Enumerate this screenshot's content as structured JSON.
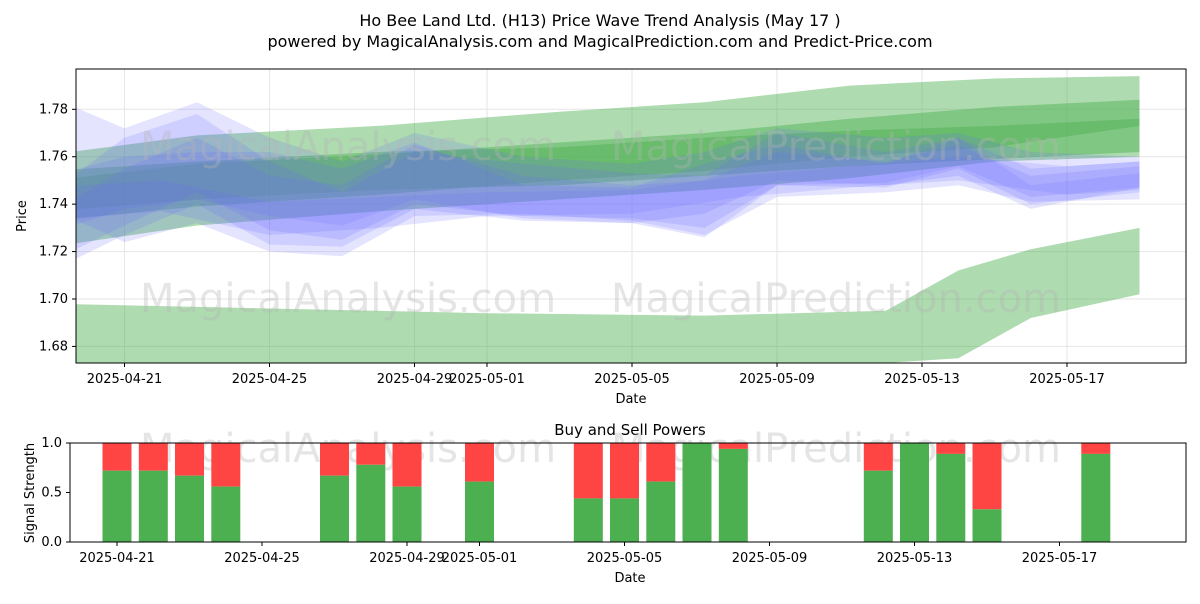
{
  "title": "Ho Bee Land Ltd. (H13) Price Wave Trend Analysis (May 17 )",
  "subtitle": "powered by MagicalAnalysis.com and MagicalPrediction.com and Predict-Price.com",
  "watermarks": [
    "MagicalAnalysis.com",
    "MagicalPrediction.com"
  ],
  "colors": {
    "green_band": "#4caf50",
    "blue_band": "#6a6aff",
    "buy": "#4caf50",
    "sell": "#ff4444",
    "grid": "#e6e6e6"
  },
  "chart_data": [
    {
      "type": "area",
      "title": "",
      "xlabel": "Date",
      "ylabel": "Price",
      "x_range": [
        "2025-04-19",
        "2025-05-20"
      ],
      "ylim": [
        1.673,
        1.797
      ],
      "y_ticks": [
        "1.68",
        "1.70",
        "1.72",
        "1.74",
        "1.76",
        "1.78"
      ],
      "x_ticks": [
        "2025-04-21",
        "2025-04-25",
        "2025-04-29",
        "2025-05-01",
        "2025-05-05",
        "2025-05-09",
        "2025-05-13",
        "2025-05-17"
      ],
      "grid": true,
      "green_bands": [
        {
          "x": [
            "2025-04-19",
            "2025-04-23",
            "2025-04-28",
            "2025-05-03",
            "2025-05-07",
            "2025-05-11",
            "2025-05-15",
            "2025-05-19"
          ],
          "upper": [
            1.761,
            1.769,
            1.773,
            1.779,
            1.783,
            1.79,
            1.793,
            1.794
          ],
          "lower": [
            1.722,
            1.731,
            1.737,
            1.742,
            1.746,
            1.751,
            1.758,
            1.76
          ]
        },
        {
          "x": [
            "2025-04-19",
            "2025-04-23",
            "2025-04-28",
            "2025-05-03",
            "2025-05-07",
            "2025-05-11",
            "2025-05-15",
            "2025-05-19"
          ],
          "upper": [
            1.75,
            1.757,
            1.761,
            1.766,
            1.77,
            1.776,
            1.781,
            1.784
          ],
          "lower": [
            1.733,
            1.739,
            1.744,
            1.75,
            1.754,
            1.76,
            1.764,
            1.773
          ]
        },
        {
          "x": [
            "2025-04-19",
            "2025-04-23",
            "2025-04-28",
            "2025-05-03",
            "2025-05-07",
            "2025-05-11",
            "2025-05-15",
            "2025-05-19"
          ],
          "upper": [
            1.754,
            1.758,
            1.762,
            1.764,
            1.768,
            1.771,
            1.773,
            1.776
          ],
          "lower": [
            1.737,
            1.742,
            1.746,
            1.748,
            1.752,
            1.756,
            1.759,
            1.762
          ]
        },
        {
          "x": [
            "2025-04-19",
            "2025-04-25",
            "2025-05-01",
            "2025-05-07",
            "2025-05-12",
            "2025-05-14",
            "2025-05-16",
            "2025-05-19"
          ],
          "upper": [
            1.698,
            1.696,
            1.694,
            1.693,
            1.695,
            1.712,
            1.721,
            1.73
          ],
          "lower": [
            1.672,
            1.673,
            1.673,
            1.673,
            1.673,
            1.675,
            1.692,
            1.702
          ]
        }
      ],
      "blue_bands": [
        {
          "x": [
            "2025-04-19",
            "2025-04-21",
            "2025-04-23",
            "2025-04-25",
            "2025-04-27",
            "2025-04-29",
            "2025-05-02",
            "2025-05-05",
            "2025-05-07",
            "2025-05-09",
            "2025-05-12",
            "2025-05-14",
            "2025-05-16",
            "2025-05-19"
          ],
          "upper": [
            1.785,
            1.772,
            1.783,
            1.768,
            1.758,
            1.77,
            1.76,
            1.757,
            1.762,
            1.772,
            1.768,
            1.77,
            1.762,
            1.76
          ],
          "lower": [
            1.738,
            1.724,
            1.732,
            1.72,
            1.718,
            1.735,
            1.736,
            1.733,
            1.727,
            1.743,
            1.745,
            1.748,
            1.741,
            1.742
          ]
        },
        {
          "x": [
            "2025-04-19",
            "2025-04-21",
            "2025-04-23",
            "2025-04-25",
            "2025-04-27",
            "2025-04-29",
            "2025-05-02",
            "2025-05-05",
            "2025-05-07",
            "2025-05-09",
            "2025-05-12",
            "2025-05-14",
            "2025-05-16",
            "2025-05-19"
          ],
          "upper": [
            1.745,
            1.768,
            1.778,
            1.758,
            1.745,
            1.762,
            1.757,
            1.753,
            1.752,
            1.77,
            1.762,
            1.768,
            1.755,
            1.758
          ],
          "lower": [
            1.712,
            1.727,
            1.74,
            1.723,
            1.722,
            1.738,
            1.733,
            1.732,
            1.726,
            1.748,
            1.747,
            1.755,
            1.74,
            1.745
          ]
        },
        {
          "x": [
            "2025-04-19",
            "2025-04-21",
            "2025-04-23",
            "2025-04-25",
            "2025-04-27",
            "2025-04-29",
            "2025-05-02",
            "2025-05-05",
            "2025-05-07",
            "2025-05-09",
            "2025-05-12",
            "2025-05-14",
            "2025-05-16",
            "2025-05-19"
          ],
          "upper": [
            1.736,
            1.755,
            1.768,
            1.752,
            1.748,
            1.765,
            1.752,
            1.748,
            1.75,
            1.762,
            1.758,
            1.765,
            1.752,
            1.756
          ],
          "lower": [
            1.716,
            1.731,
            1.745,
            1.729,
            1.725,
            1.74,
            1.735,
            1.734,
            1.73,
            1.748,
            1.749,
            1.756,
            1.743,
            1.747
          ]
        },
        {
          "x": [
            "2025-04-19",
            "2025-04-21",
            "2025-04-23",
            "2025-04-25",
            "2025-04-27",
            "2025-04-29",
            "2025-05-02",
            "2025-05-05",
            "2025-05-07",
            "2025-05-09",
            "2025-05-12",
            "2025-05-14",
            "2025-05-16",
            "2025-05-19"
          ],
          "upper": [
            1.752,
            1.76,
            1.762,
            1.762,
            1.755,
            1.766,
            1.748,
            1.747,
            1.757,
            1.765,
            1.757,
            1.768,
            1.748,
            1.753
          ],
          "lower": [
            1.728,
            1.738,
            1.742,
            1.735,
            1.731,
            1.742,
            1.734,
            1.732,
            1.736,
            1.75,
            1.748,
            1.752,
            1.738,
            1.747
          ]
        },
        {
          "x": [
            "2025-04-19",
            "2025-04-22",
            "2025-04-25",
            "2025-04-28",
            "2025-05-01",
            "2025-05-05",
            "2025-05-08",
            "2025-05-11",
            "2025-05-14",
            "2025-05-17",
            "2025-05-19"
          ],
          "upper": [
            1.747,
            1.75,
            1.741,
            1.743,
            1.745,
            1.746,
            1.752,
            1.756,
            1.76,
            1.756,
            1.758
          ],
          "lower": [
            1.733,
            1.737,
            1.727,
            1.73,
            1.735,
            1.736,
            1.743,
            1.747,
            1.75,
            1.744,
            1.746
          ]
        }
      ]
    },
    {
      "type": "bar",
      "title": "Buy and Sell Powers",
      "xlabel": "Date",
      "ylabel": "Signal Strength",
      "ylim": [
        0,
        1
      ],
      "y_ticks": [
        "0.0",
        "0.5",
        "1.0"
      ],
      "x_ticks": [
        "2025-04-21",
        "2025-04-25",
        "2025-04-29",
        "2025-05-01",
        "2025-05-05",
        "2025-05-09",
        "2025-05-13",
        "2025-05-17"
      ],
      "categories": [
        "2025-04-21",
        "2025-04-22",
        "2025-04-23",
        "2025-04-24",
        "2025-04-27",
        "2025-04-28",
        "2025-04-29",
        "2025-05-01",
        "2025-05-04",
        "2025-05-05",
        "2025-05-06",
        "2025-05-07",
        "2025-05-08",
        "2025-05-12",
        "2025-05-13",
        "2025-05-14",
        "2025-05-15",
        "2025-05-18"
      ],
      "series": [
        {
          "name": "",
          "values": [
            0.72,
            0.72,
            0.67,
            0.56,
            0.67,
            0.78,
            0.56,
            0.61,
            0.44,
            0.44,
            0.61,
            1.0,
            0.94,
            0.72,
            1.0,
            0.89,
            0.33,
            0.89
          ]
        }
      ]
    }
  ]
}
